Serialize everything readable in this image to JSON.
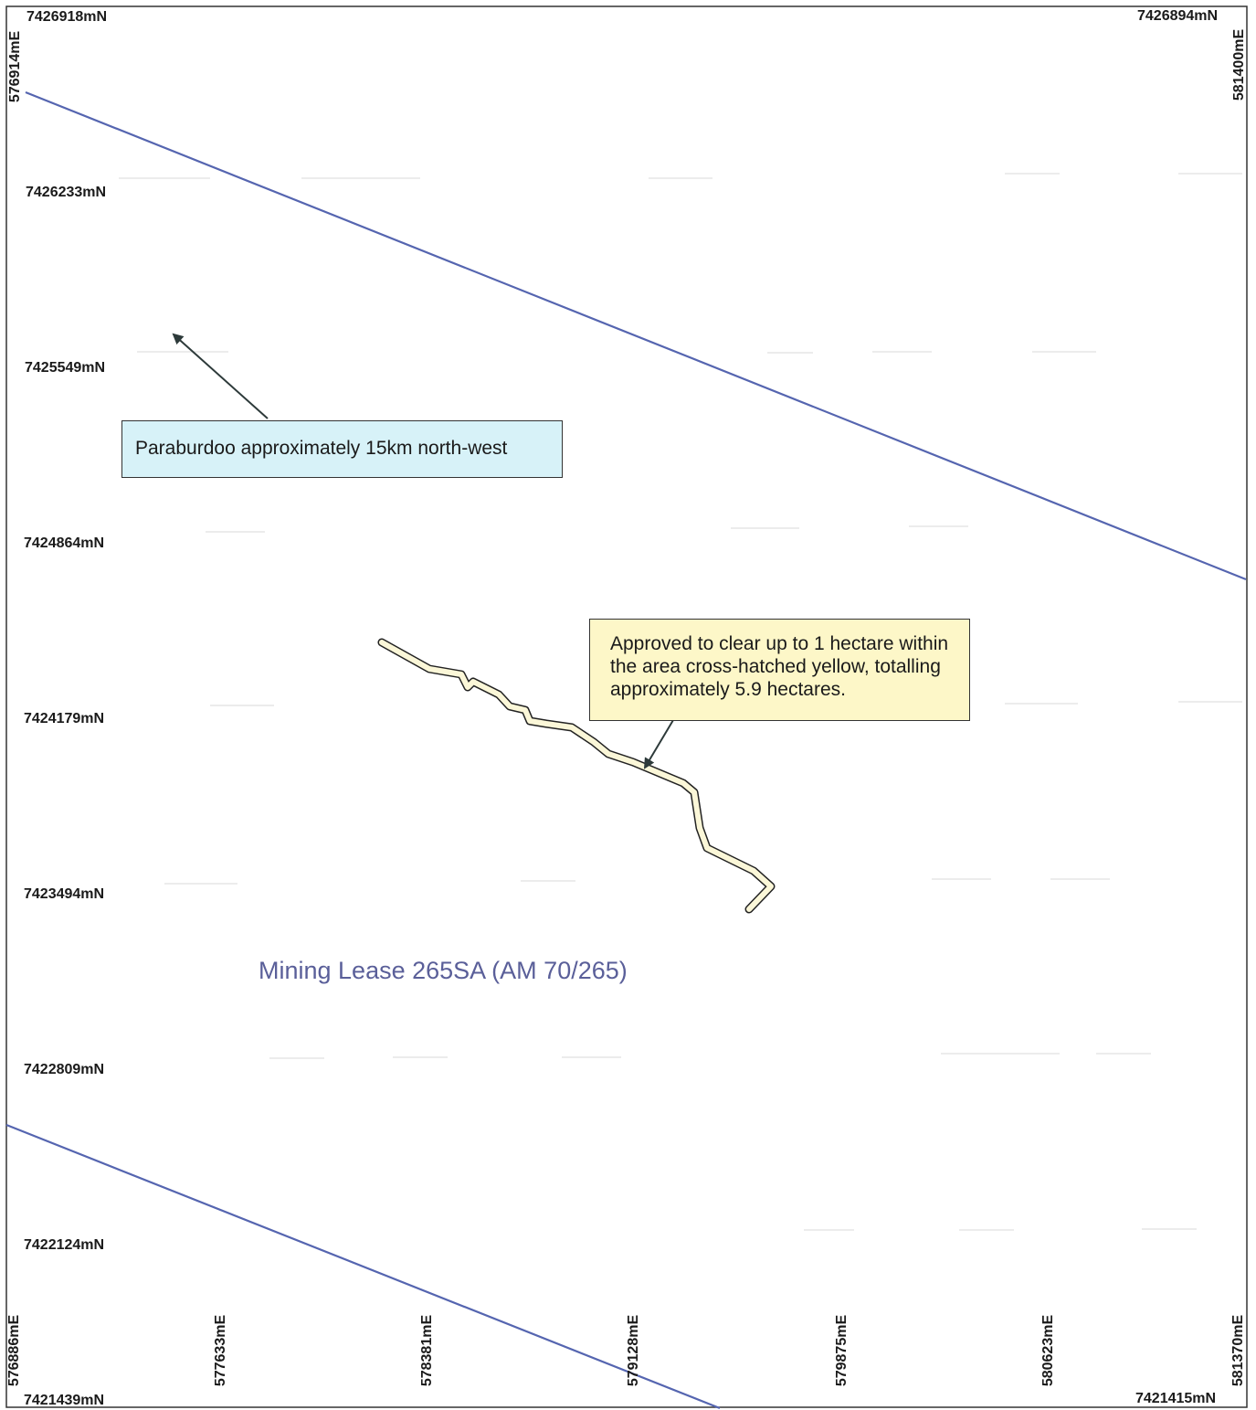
{
  "northings": [
    "7426233mN",
    "7425549mN",
    "7424864mN",
    "7424179mN",
    "7423494mN",
    "7422809mN",
    "7422124mN"
  ],
  "eastings": [
    "576886mE",
    "577633mE",
    "578381mE",
    "579128mE",
    "579875mE",
    "580623mE",
    "581370mE"
  ],
  "corners": {
    "top_left_n": "7426918mN",
    "top_right_n": "7426894mN",
    "bottom_left_n": "7421439mN",
    "bottom_right_n": "7421415mN",
    "left_e": "576914mE",
    "right_e": "581400mE"
  },
  "callouts": {
    "paraburdoo": "Paraburdoo approximately 15km north-west",
    "approved": "Approved to clear up to 1 hectare within the area cross-hatched yellow, totalling approximately 5.9 hectares."
  },
  "lease_label": "Mining Lease 265SA (AM 70/265)",
  "colors": {
    "boundary_line": "#5565b0",
    "paraburdoo_box": "#d7f2f8",
    "approved_box": "#fdf7c8",
    "clearing_area_fill": "#fbf7d8",
    "lease_label": "#5a5f99"
  }
}
